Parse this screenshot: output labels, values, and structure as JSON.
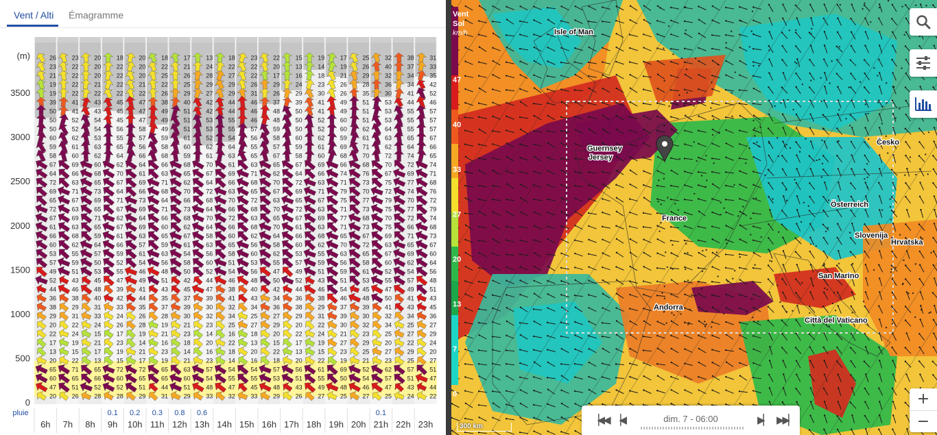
{
  "tabs": [
    {
      "label": "Vent / Alti",
      "active": true
    },
    {
      "label": "Émagramme",
      "active": false
    }
  ],
  "altitude_axis": {
    "unit_label": "(m)",
    "ticks": [
      "3500",
      "3000",
      "2500",
      "2000",
      "1500",
      "1000",
      "500",
      "0"
    ]
  },
  "rain_label": "pluie",
  "hours": [
    "6h",
    "7h",
    "8h",
    "9h",
    "10h",
    "11h",
    "12h",
    "13h",
    "14h",
    "15h",
    "16h",
    "17h",
    "18h",
    "19h",
    "20h",
    "21h",
    "22h",
    "23h"
  ],
  "rain_values": [
    "",
    "",
    "",
    "0.1",
    "0.2",
    "0.3",
    "0.8",
    "0.6",
    "",
    "",
    "",
    "",
    "",
    "",
    "",
    "0.1",
    "",
    ""
  ],
  "wind_rows_top": [
    [
      "26",
      "23",
      "20",
      "18",
      "20",
      "18",
      "17",
      "13",
      "18",
      "23",
      "22",
      "15",
      "19",
      "17",
      "25",
      "32",
      "38",
      "31"
    ],
    [
      "23",
      "22",
      "20",
      "22",
      "20",
      "22",
      "21",
      "24",
      "22",
      "22",
      "20",
      "13",
      "14",
      "19",
      "26",
      "40",
      "37",
      "33"
    ],
    [
      "21",
      "22",
      "20",
      "22",
      "20",
      "25",
      "26",
      "28",
      "27",
      "22",
      "17",
      "16",
      "18",
      "21",
      "29",
      "32",
      "34",
      "35"
    ],
    [
      "19",
      "22",
      "21",
      "22",
      "21",
      "22",
      "25",
      "29",
      "29",
      "26",
      "29",
      "24",
      "23",
      "26",
      "28",
      "36",
      "34",
      "42"
    ],
    [
      "19",
      "22",
      "22",
      "22",
      "22",
      "26",
      "29",
      "27",
      "29",
      "31",
      "26",
      "29",
      "30",
      "26",
      "35",
      "30",
      "41",
      "52"
    ]
  ],
  "wind_rows_bottom": [
    [
      "65",
      "71",
      "65",
      "72",
      "72",
      "65",
      "63",
      "57",
      "54",
      "54",
      "57",
      "56",
      "61",
      "69",
      "52",
      "62",
      "57",
      "51"
    ],
    [
      "60",
      "65",
      "66",
      "60",
      "65",
      "65",
      "60",
      "54",
      "55",
      "55",
      "53",
      "51",
      "55",
      "50",
      "54",
      "57",
      "51",
      "47"
    ],
    [
      "47",
      "51",
      "52",
      "52",
      "51",
      "44",
      "51",
      "48",
      "47",
      "45",
      "48",
      "43",
      "49",
      "48",
      "46",
      "47",
      "43",
      "44"
    ],
    [
      "20",
      "26",
      "28",
      "28",
      "29",
      "31",
      "29",
      "33",
      "32",
      "33",
      "29",
      "26",
      "27",
      "25",
      "27",
      "25",
      "24",
      "22"
    ]
  ],
  "map": {
    "legend_title_1": "Vent",
    "legend_title_2": "Sol",
    "legend_unit": "km/h",
    "legend_values": [
      "47",
      "40",
      "33",
      "27",
      "20",
      "13",
      "7",
      "0"
    ],
    "places": [
      "Isle of Man",
      "Guernsey",
      "Jersey",
      "France",
      "Česko",
      "Österreich",
      "Slovenija",
      "Hrvatska",
      "San Marino",
      "Andorra",
      "Città del Vaticano"
    ],
    "time_label": "dim. 7 - 06:00",
    "scale_label": "300 km",
    "zoom_in": "+",
    "zoom_out": "−"
  },
  "icons": {
    "search": "search-icon",
    "layers": "sliders-icon",
    "chart": "bar-chart-icon",
    "first": "skip-first-icon",
    "prev": "step-back-icon",
    "next": "step-forward-icon",
    "last": "skip-last-icon",
    "marker": "location-pin-icon"
  },
  "colors": {
    "accent": "#1f4ca1",
    "wind_scale": [
      "#1dd6c6",
      "#2fb84a",
      "#b6e23a",
      "#f4e02c",
      "#f7a823",
      "#ee5a1e",
      "#d81b1b",
      "#7d0a4f"
    ]
  }
}
